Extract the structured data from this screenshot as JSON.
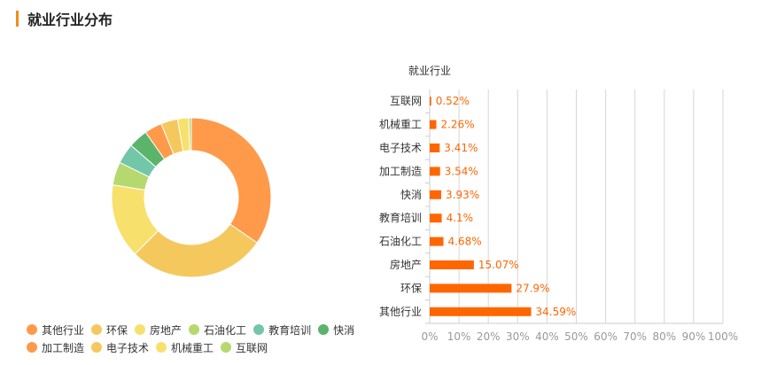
{
  "header": {
    "title": "就业行业分布"
  },
  "colors": {
    "accent": "#f08c1a",
    "bar": "#ff6600",
    "grid": "#d6d6d6",
    "axis": "#cccccc",
    "tick": "#999999"
  },
  "chart_data": [
    {
      "type": "pie",
      "donut": true,
      "categories": [
        "其他行业",
        "环保",
        "房地产",
        "石油化工",
        "教育培训",
        "快消",
        "加工制造",
        "电子技术",
        "机械重工",
        "互联网"
      ],
      "values": [
        34.59,
        27.9,
        15.07,
        4.68,
        4.1,
        3.93,
        3.54,
        3.41,
        2.26,
        0.52
      ],
      "colors": [
        "#ff9a4b",
        "#f5c85e",
        "#f8e06d",
        "#b5d96f",
        "#72c7a8",
        "#5cb46b",
        "#ff9a4b",
        "#f5c85e",
        "#f8e06d",
        "#b5d96f"
      ],
      "legend": "bottom"
    },
    {
      "type": "bar",
      "orientation": "horizontal",
      "ylabel": "就业行业",
      "categories": [
        "互联网",
        "机械重工",
        "电子技术",
        "加工制造",
        "快消",
        "教育培训",
        "石油化工",
        "房地产",
        "环保",
        "其他行业"
      ],
      "values": [
        0.52,
        2.26,
        3.41,
        3.54,
        3.93,
        4.1,
        4.68,
        15.07,
        27.9,
        34.59
      ],
      "value_labels": [
        "0.52%",
        "2.26%",
        "3.41%",
        "3.54%",
        "3.93%",
        "4.1%",
        "4.68%",
        "15.07%",
        "27.9%",
        "34.59%"
      ],
      "xlim": [
        0,
        100
      ],
      "xticks": [
        "0%",
        "10%",
        "20%",
        "30%",
        "40%",
        "50%",
        "60%",
        "70%",
        "80%",
        "90%",
        "100%"
      ],
      "grid": true
    }
  ]
}
